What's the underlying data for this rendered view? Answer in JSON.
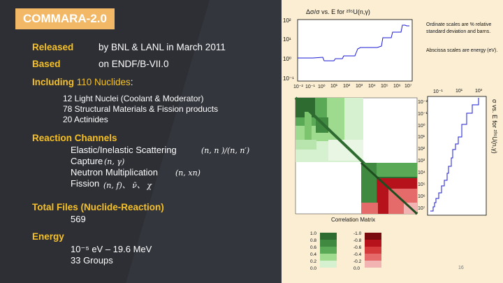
{
  "title": "COMMARA-2.0",
  "released": {
    "label": "Released",
    "text": "by BNL & LANL in March 2011"
  },
  "based": {
    "label": "Based",
    "text": "on ENDF/B-VII.0"
  },
  "including": {
    "label": "Including ",
    "highlight": "110 Nuclides",
    "suffix": ":"
  },
  "nuclides": [
    "12 Light Nuclei (Coolant & Moderator)",
    "78 Structural Materials & Fission products",
    "20 Actinides"
  ],
  "reaction": {
    "header": "Reaction Channels",
    "items": [
      {
        "label": "Elastic/Inelastic Scattering",
        "math": "(n, n )/(n, n′)"
      },
      {
        "label": "Capture",
        "math": "(n, γ)"
      },
      {
        "label": "Neutron Multiplication",
        "math": "(n, xn)"
      },
      {
        "label": "Fission",
        "math": "(n, f)、 ν̄、 χ"
      }
    ]
  },
  "total": {
    "header": "Total Files (Nuclide-Reaction)",
    "value": "569"
  },
  "energy": {
    "header": "Energy",
    "range": "10⁻⁵ eV – 19.6 MeV",
    "groups": "33 Groups"
  },
  "figure": {
    "top_title": "Δσ/σ vs. E for ²³⁵U(n,γ)",
    "side_title": "σ vs. E for ²³⁵U(n,γ)",
    "note1a": "Ordinate scales are % relative",
    "note1b": "standard deviation and barns.",
    "note2": "Abscissa scales are energy (eV).",
    "matrix_label": "Correlation Matrix",
    "pos_scale": [
      "1.0",
      "0.8",
      "0.6",
      "0.4",
      "0.2",
      "0.0"
    ],
    "neg_scale": [
      "-1.0",
      "-0.8",
      "-0.6",
      "-0.4",
      "-0.2",
      "0.0"
    ],
    "top_y_ticks": [
      "10²",
      "10¹",
      "10⁰",
      "10⁻¹"
    ],
    "top_x_ticks": [
      "10⁻²",
      "10⁻¹",
      "10⁰",
      "10¹",
      "10²",
      "10³",
      "10⁴",
      "10⁵",
      "10⁶",
      "10⁷"
    ],
    "side_x_ticks": [
      "10⁻¹",
      "10¹",
      "10³"
    ],
    "side_y_ticks": [
      "10⁻²",
      "10⁻¹",
      "10⁰",
      "10¹",
      "10²",
      "10³",
      "10⁴",
      "10⁵",
      "10⁶",
      "10⁷"
    ],
    "page_number": "16",
    "colors": {
      "pos": "#2e6b30",
      "neg": "#b5121b",
      "line": "#1a1ad6"
    }
  }
}
